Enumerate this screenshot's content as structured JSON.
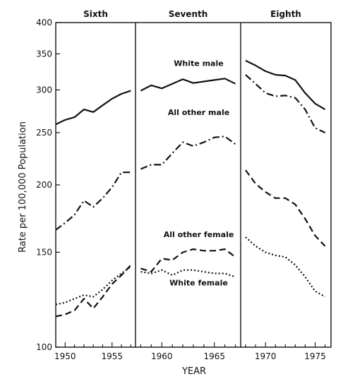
{
  "chart_data": {
    "type": "line",
    "xlabel": "YEAR",
    "ylabel": "Rate per 100,000 Population",
    "yscale": "log",
    "ylim": [
      100,
      400
    ],
    "yticks": [
      100,
      150,
      200,
      250,
      300,
      350,
      400
    ],
    "grid": false,
    "panels": [
      {
        "title": "Sixth",
        "xlim": [
          1949,
          1957.5
        ],
        "xticks": [
          1950,
          1955
        ]
      },
      {
        "title": "Seventh",
        "xlim": [
          1957.5,
          1967.5
        ],
        "xticks": [
          1960,
          1965
        ]
      },
      {
        "title": "Eighth",
        "xlim": [
          1967.5,
          1976.6
        ],
        "xticks": [
          1970,
          1975
        ]
      }
    ],
    "series": [
      {
        "name": "White male",
        "style": "solid",
        "x": [
          1949,
          1950,
          1951,
          1952,
          1953,
          1954,
          1955,
          1956,
          1957,
          1958,
          1959,
          1960,
          1961,
          1962,
          1963,
          1964,
          1965,
          1966,
          1967,
          1968,
          1969,
          1970,
          1971,
          1972,
          1973,
          1974,
          1975,
          1976
        ],
        "y": [
          259,
          264,
          267,
          276,
          273,
          281,
          289,
          295,
          299,
          299,
          306,
          302,
          308,
          314,
          309,
          311,
          313,
          315,
          308,
          340,
          333,
          325,
          320,
          319,
          313,
          296,
          283,
          276
        ]
      },
      {
        "name": "All other male",
        "style": "dashdot",
        "x": [
          1949,
          1950,
          1951,
          1952,
          1953,
          1954,
          1955,
          1956,
          1957,
          1958,
          1959,
          1960,
          1961,
          1962,
          1963,
          1964,
          1965,
          1966,
          1967,
          1968,
          1969,
          1970,
          1971,
          1972,
          1973,
          1974,
          1975,
          1976
        ],
        "y": [
          165,
          170,
          176,
          187,
          182,
          189,
          198,
          211,
          211,
          214,
          218,
          218,
          229,
          240,
          236,
          240,
          245,
          246,
          238,
          320,
          308,
          296,
          292,
          293,
          290,
          276,
          255,
          250
        ]
      },
      {
        "name": "All other female",
        "style": "dashed",
        "x": [
          1949,
          1950,
          1951,
          1952,
          1953,
          1954,
          1955,
          1956,
          1957,
          1958,
          1959,
          1960,
          1961,
          1962,
          1963,
          1964,
          1965,
          1966,
          1967,
          1968,
          1969,
          1970,
          1971,
          1972,
          1973,
          1974,
          1975,
          1976
        ],
        "y": [
          114,
          115,
          117,
          123,
          118,
          124,
          131,
          136,
          142,
          140,
          138,
          146,
          145,
          150,
          152,
          151,
          151,
          152,
          147,
          213,
          201,
          194,
          189,
          189,
          184,
          173,
          161,
          154
        ]
      },
      {
        "name": "White female",
        "style": "dotted",
        "x": [
          1949,
          1950,
          1951,
          1952,
          1953,
          1954,
          1955,
          1956,
          1957,
          1958,
          1959,
          1960,
          1961,
          1962,
          1963,
          1964,
          1965,
          1966,
          1967,
          1968,
          1969,
          1970,
          1971,
          1972,
          1973,
          1974,
          1975,
          1976
        ],
        "y": [
          120,
          121,
          123,
          125,
          124,
          128,
          133,
          137,
          141,
          138,
          137,
          139,
          136,
          139,
          139,
          138,
          137,
          137,
          135,
          160,
          154,
          150,
          148,
          147,
          142,
          135,
          127,
          124
        ]
      }
    ]
  }
}
